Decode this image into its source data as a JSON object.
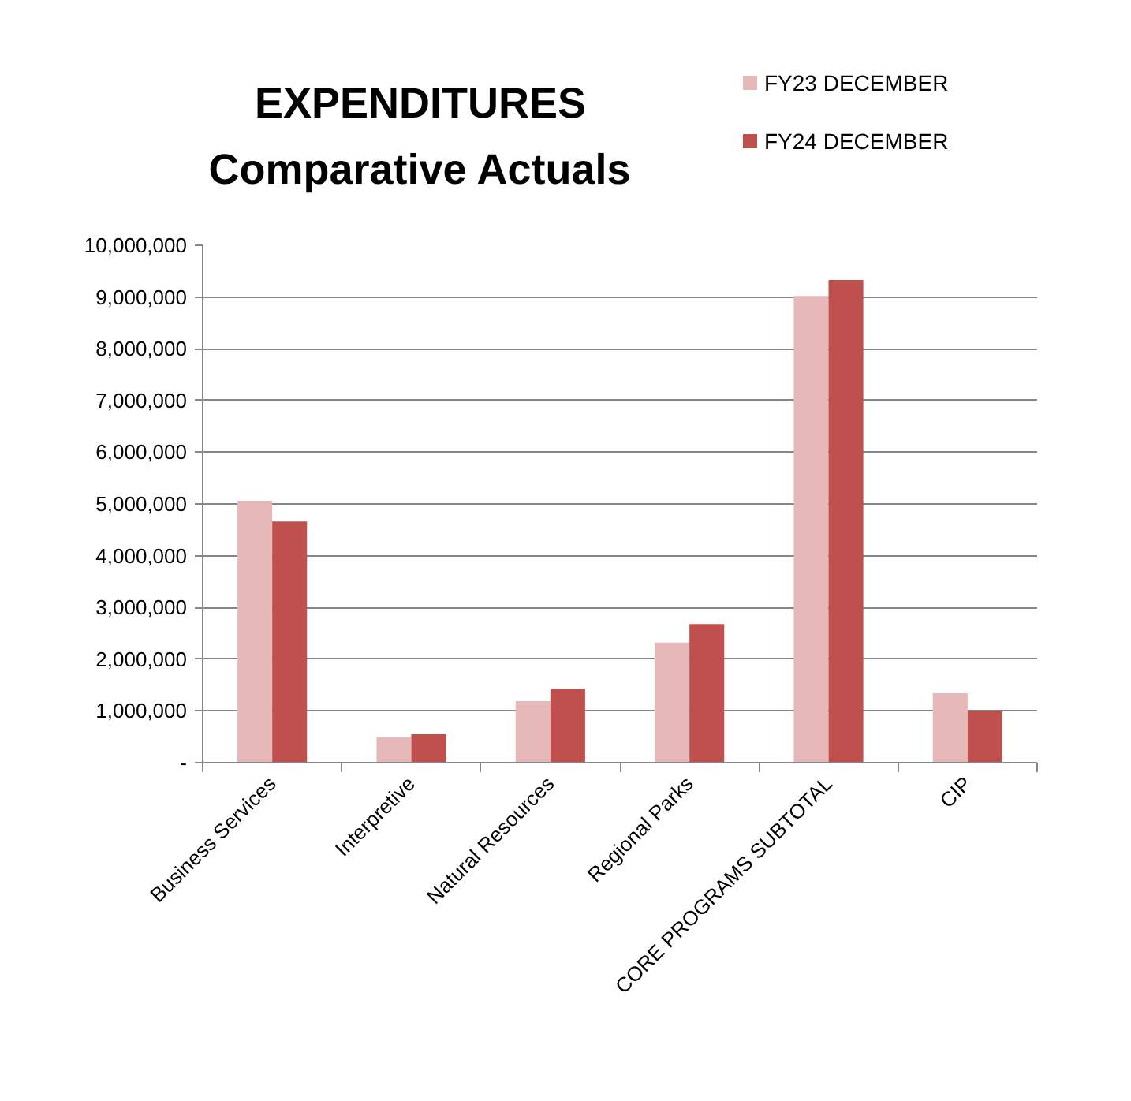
{
  "chart_data": {
    "type": "bar",
    "title": "EXPENDITURES",
    "subtitle": "Comparative Actuals",
    "categories": [
      "Business Services",
      "Interpretive",
      "Natural Resources",
      "Regional Parks",
      "CORE PROGRAMS SUBTOTAL",
      "CIP"
    ],
    "series": [
      {
        "name": "FY23 DECEMBER",
        "color": "#e6b9b8",
        "values": [
          5060000,
          490000,
          1190000,
          2320000,
          9020000,
          1340000
        ]
      },
      {
        "name": "FY24 DECEMBER",
        "color": "#c0504d",
        "values": [
          4660000,
          550000,
          1430000,
          2680000,
          9330000,
          1000000
        ]
      }
    ],
    "ylim": [
      0,
      10000000
    ],
    "yticks": [
      {
        "value": 0,
        "label": "-"
      },
      {
        "value": 1000000,
        "label": "1,000,000"
      },
      {
        "value": 2000000,
        "label": "2,000,000"
      },
      {
        "value": 3000000,
        "label": "3,000,000"
      },
      {
        "value": 4000000,
        "label": "4,000,000"
      },
      {
        "value": 5000000,
        "label": "5,000,000"
      },
      {
        "value": 6000000,
        "label": "6,000,000"
      },
      {
        "value": 7000000,
        "label": "7,000,000"
      },
      {
        "value": 8000000,
        "label": "8,000,000"
      },
      {
        "value": 9000000,
        "label": "9,000,000"
      },
      {
        "value": 10000000,
        "label": "10,000,000"
      }
    ],
    "grid": "y",
    "legend": "top right"
  }
}
